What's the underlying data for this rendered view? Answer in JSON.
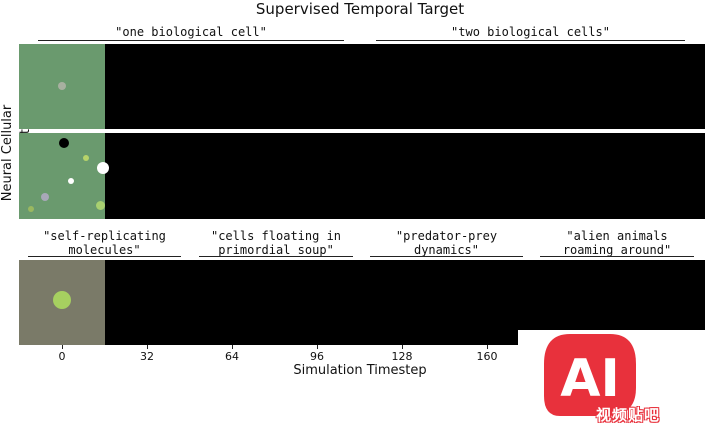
{
  "figure": {
    "title": "Supervised Temporal Target",
    "ylabel": "Neural Cellular Automata",
    "xlabel": "Simulation Timestep"
  },
  "captions": {
    "top": [
      "\"one biological cell\"",
      "\"two biological cells\""
    ],
    "bottom": [
      "\"self-replicating\nmolecules\"",
      "\"cells floating in\nprimordial soup\"",
      "\"predator-prey\ndynamics\"",
      "\"alien animals\nroaming around\""
    ]
  },
  "x_ticks": [
    "0",
    "32",
    "64",
    "96",
    "128",
    "160"
  ],
  "colors": {
    "row1_tile": "#6a9a6e",
    "row2_tile": "#6a9a6e",
    "row3_tile": "#7a7a68",
    "panel_bg": "#000000",
    "watermark": "#e8313c"
  },
  "watermark": {
    "logo": "AI",
    "text": "视频贴吧"
  }
}
